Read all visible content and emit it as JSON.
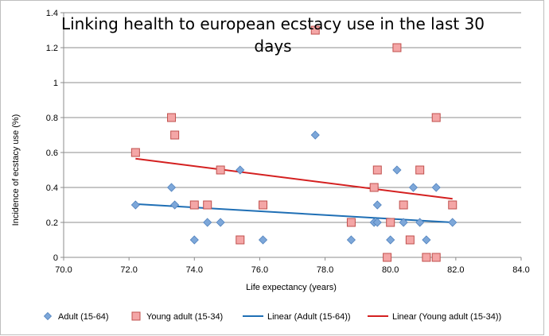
{
  "chart_data": {
    "type": "scatter",
    "title_lines": [
      "Linking health to european ecstacy use in the last 30",
      "days"
    ],
    "xlabel": "Life expectancy (years)",
    "ylabel": "Incidence of ecstacy use (%)",
    "xlim": [
      70.0,
      84.0
    ],
    "ylim": [
      0,
      1.4
    ],
    "x_ticks": [
      "70.0",
      "72.0",
      "74.0",
      "76.0",
      "78.0",
      "80.0",
      "82.0",
      "84.0"
    ],
    "y_ticks": [
      "0",
      "0.2",
      "0.4",
      "0.6",
      "0.8",
      "1",
      "1.2",
      "1.4"
    ],
    "grid": "horizontal",
    "legend_position": "bottom",
    "series": [
      {
        "name": "Adult (15-64)",
        "marker": "diamond",
        "color": "#7DA7D9",
        "points": [
          [
            72.2,
            0.3
          ],
          [
            73.3,
            0.4
          ],
          [
            73.4,
            0.3
          ],
          [
            74.0,
            0.1
          ],
          [
            74.4,
            0.2
          ],
          [
            74.8,
            0.2
          ],
          [
            75.4,
            0.5
          ],
          [
            76.1,
            0.1
          ],
          [
            77.7,
            0.7
          ],
          [
            78.8,
            0.1
          ],
          [
            79.5,
            0.2
          ],
          [
            79.6,
            0.2
          ],
          [
            79.6,
            0.3
          ],
          [
            79.9,
            0.0
          ],
          [
            80.0,
            0.1
          ],
          [
            80.2,
            0.5
          ],
          [
            80.4,
            0.2
          ],
          [
            80.6,
            0.1
          ],
          [
            80.7,
            0.4
          ],
          [
            80.9,
            0.2
          ],
          [
            81.1,
            0.1
          ],
          [
            81.4,
            0.4
          ],
          [
            81.4,
            0.0
          ],
          [
            81.9,
            0.2
          ]
        ]
      },
      {
        "name": "Young adult (15-34)",
        "marker": "square",
        "color": "#F4A6A6",
        "points": [
          [
            72.2,
            0.6
          ],
          [
            73.3,
            0.8
          ],
          [
            73.4,
            0.7
          ],
          [
            74.0,
            0.3
          ],
          [
            74.4,
            0.3
          ],
          [
            74.8,
            0.5
          ],
          [
            75.4,
            0.1
          ],
          [
            76.1,
            0.3
          ],
          [
            77.7,
            1.3
          ],
          [
            78.8,
            0.2
          ],
          [
            79.5,
            0.4
          ],
          [
            79.6,
            0.5
          ],
          [
            79.9,
            0.0
          ],
          [
            80.0,
            0.2
          ],
          [
            80.2,
            1.2
          ],
          [
            80.4,
            0.3
          ],
          [
            80.6,
            0.1
          ],
          [
            80.9,
            0.5
          ],
          [
            81.1,
            0.0
          ],
          [
            81.4,
            0.8
          ],
          [
            81.4,
            0.0
          ],
          [
            81.9,
            0.3
          ]
        ]
      },
      {
        "name": "Linear (Adult (15-64))",
        "type": "trendline",
        "color": "#1F6FB5",
        "points": [
          [
            72.2,
            0.305
          ],
          [
            81.9,
            0.2
          ]
        ]
      },
      {
        "name": "Linear (Young adult (15-34))",
        "type": "trendline",
        "color": "#D42020",
        "points": [
          [
            72.2,
            0.565
          ],
          [
            81.9,
            0.335
          ]
        ]
      }
    ]
  }
}
